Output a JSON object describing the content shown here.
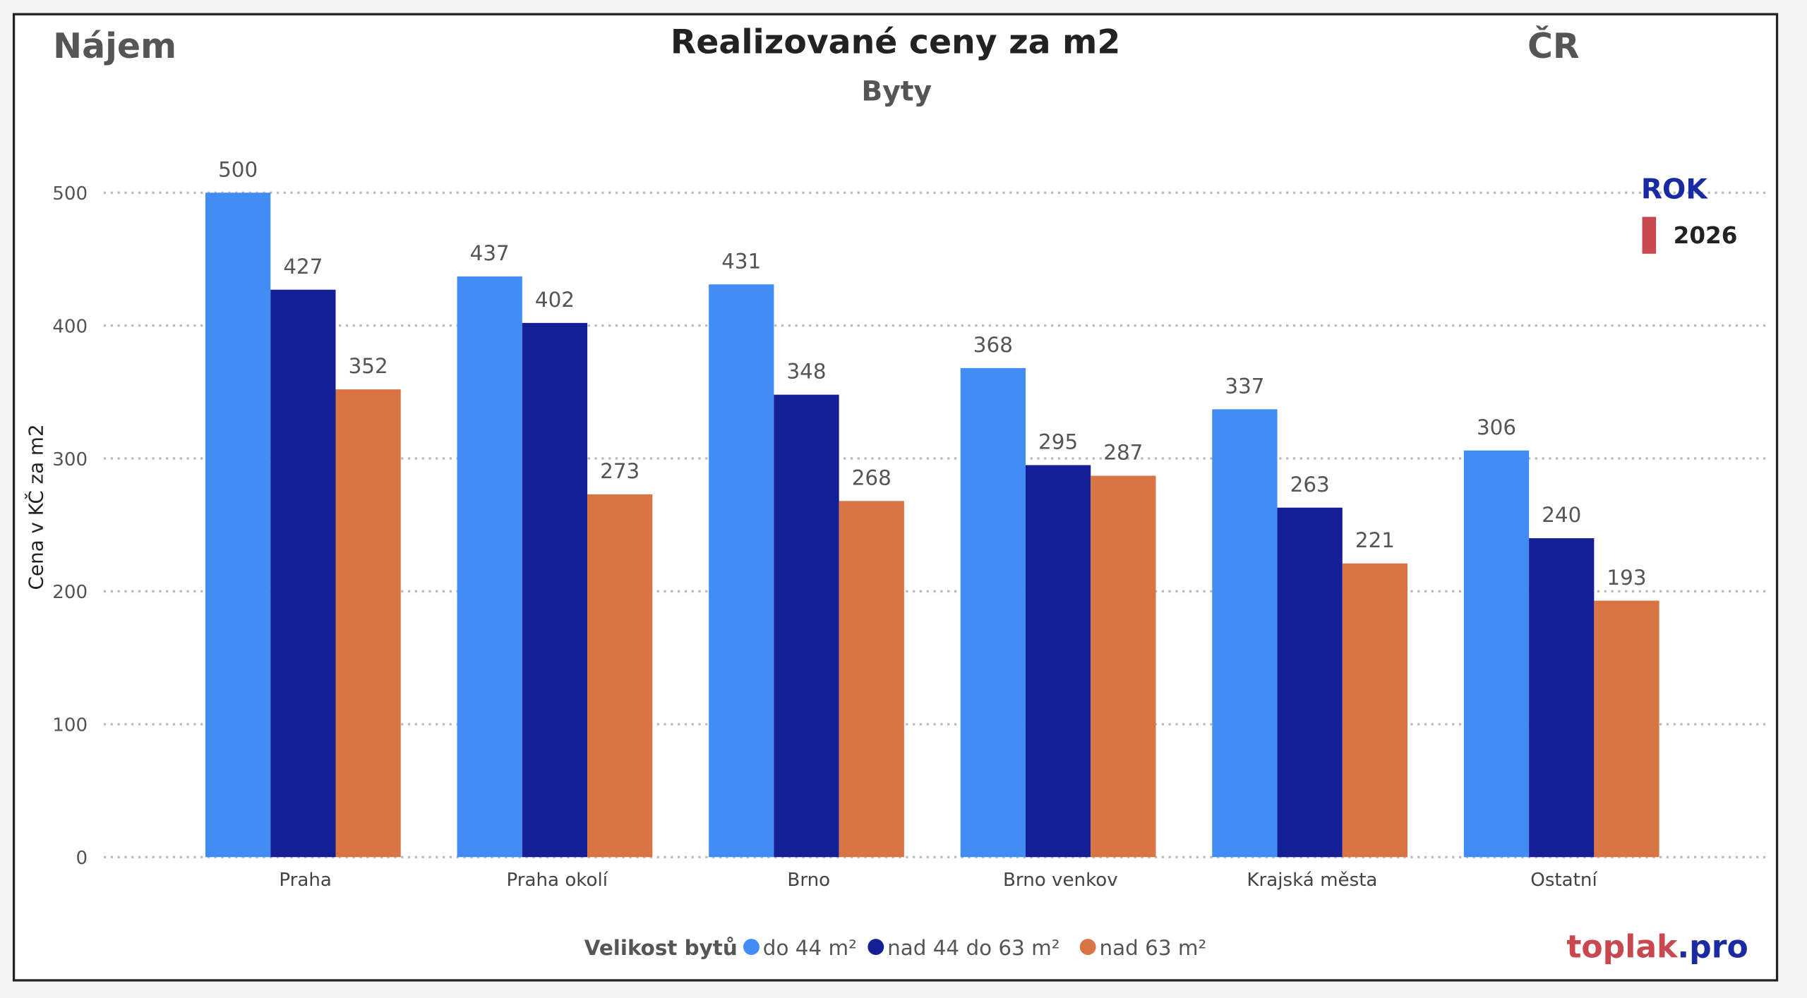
{
  "header": {
    "left": "Nájem",
    "title": "Realizované ceny za m2",
    "subtitle": "Byty",
    "right": "ČR"
  },
  "rok_legend": {
    "title": "ROK",
    "item": "2026",
    "color": "#c9484f"
  },
  "brand": {
    "part1": "toplak",
    "part2": ".pro",
    "color1": "#c9484f",
    "color2": "#1a2aa0"
  },
  "chart_data": {
    "type": "bar",
    "title": "Realizované ceny za m2",
    "subtitle": "Byty",
    "xlabel": "",
    "ylabel": "Cena v KČ za m2",
    "ylim": [
      0,
      500
    ],
    "yticks": [
      0,
      100,
      200,
      300,
      400,
      500
    ],
    "grid": true,
    "legend_title": "Velikost bytů",
    "legend_position": "bottom",
    "categories": [
      "Praha",
      "Praha okolí",
      "Brno",
      "Brno venkov",
      "Krajská města",
      "Ostatní"
    ],
    "series": [
      {
        "name": "do 44 m²",
        "color": "#418cf5",
        "values": [
          500,
          437,
          431,
          368,
          337,
          306
        ]
      },
      {
        "name": "nad 44 do 63 m²",
        "color": "#141f96",
        "values": [
          427,
          402,
          348,
          295,
          263,
          240
        ]
      },
      {
        "name": "nad 63 m²",
        "color": "#d97445",
        "values": [
          352,
          273,
          268,
          287,
          221,
          193
        ]
      }
    ]
  }
}
